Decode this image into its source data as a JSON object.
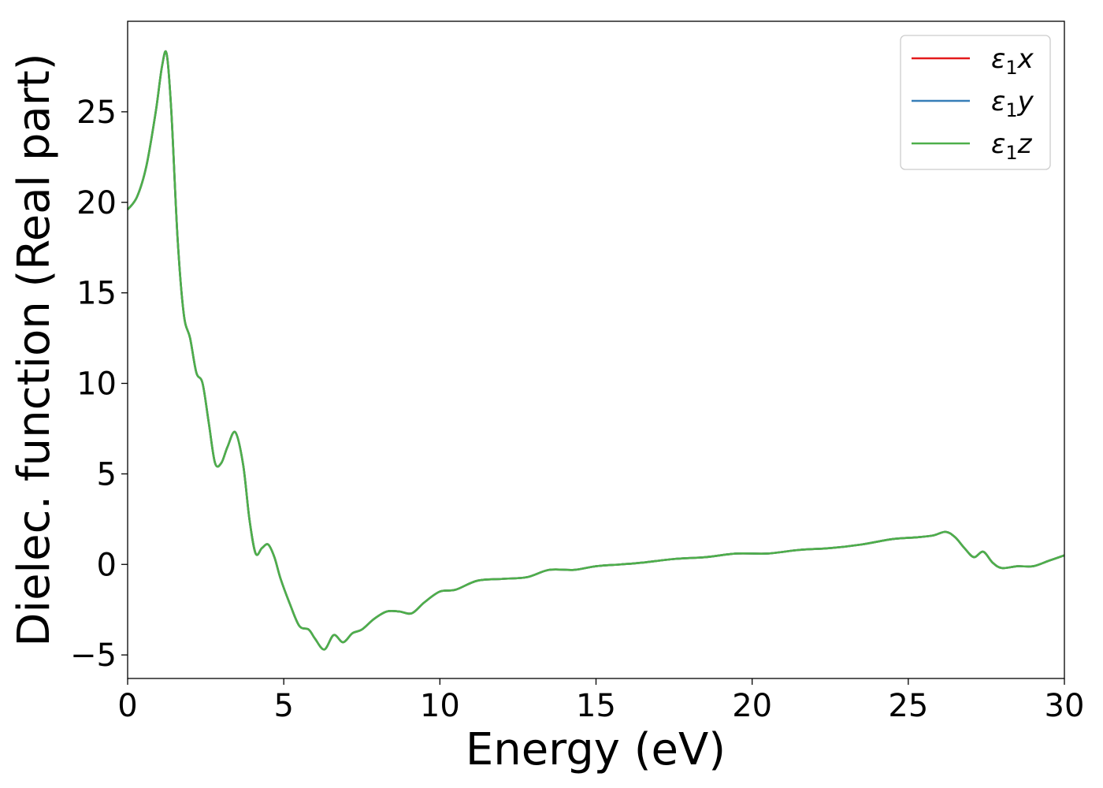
{
  "chart_data": {
    "type": "line",
    "xlabel": "Energy (eV)",
    "ylabel": "Dielec. function (Real part)",
    "xlim": [
      0,
      30
    ],
    "ylim": [
      -6.3,
      30
    ],
    "xticks": [
      0,
      5,
      10,
      15,
      20,
      25,
      30
    ],
    "yticks": [
      -5,
      0,
      5,
      10,
      15,
      20,
      25
    ],
    "grid": false,
    "legend_position": "top-right",
    "series": [
      {
        "name": "x",
        "color": "#e41a1c",
        "visible_under_overlay": true
      },
      {
        "name": "y",
        "color": "#377eb8",
        "visible_under_overlay": true
      },
      {
        "name": "z",
        "color": "#4daf4a"
      }
    ],
    "x": [
      0,
      0.3,
      0.6,
      0.9,
      1.1,
      1.25,
      1.4,
      1.6,
      1.8,
      2.0,
      2.2,
      2.4,
      2.6,
      2.8,
      3.0,
      3.2,
      3.45,
      3.7,
      3.9,
      4.1,
      4.3,
      4.5,
      4.7,
      4.9,
      5.2,
      5.5,
      5.8,
      6.0,
      6.3,
      6.6,
      6.9,
      7.2,
      7.5,
      7.9,
      8.3,
      8.7,
      9.1,
      9.5,
      10.0,
      10.5,
      11.2,
      12.0,
      12.8,
      13.5,
      14.3,
      15.0,
      15.8,
      16.5,
      17.5,
      18.5,
      19.5,
      20.5,
      21.5,
      22.5,
      23.5,
      24.5,
      25.3,
      25.8,
      26.2,
      26.5,
      26.8,
      27.1,
      27.4,
      27.7,
      28.0,
      28.5,
      29.0,
      29.5,
      30.0
    ],
    "values": [
      19.6,
      20.3,
      22.0,
      25.0,
      27.5,
      28.2,
      25.0,
      18.0,
      13.8,
      12.5,
      10.6,
      10.0,
      7.8,
      5.6,
      5.6,
      6.5,
      7.3,
      5.5,
      2.5,
      0.6,
      0.9,
      1.1,
      0.4,
      -0.8,
      -2.2,
      -3.4,
      -3.6,
      -4.1,
      -4.7,
      -3.9,
      -4.3,
      -3.8,
      -3.6,
      -3.0,
      -2.6,
      -2.6,
      -2.7,
      -2.1,
      -1.5,
      -1.4,
      -0.9,
      -0.8,
      -0.7,
      -0.3,
      -0.3,
      -0.1,
      0.0,
      0.1,
      0.3,
      0.4,
      0.6,
      0.6,
      0.8,
      0.9,
      1.1,
      1.4,
      1.5,
      1.6,
      1.8,
      1.5,
      0.9,
      0.4,
      0.7,
      0.1,
      -0.2,
      -0.1,
      -0.1,
      0.2,
      0.5
    ]
  },
  "legend": {
    "epsilon": "ε",
    "subscript": "1",
    "entries": [
      "x",
      "y",
      "z"
    ]
  }
}
